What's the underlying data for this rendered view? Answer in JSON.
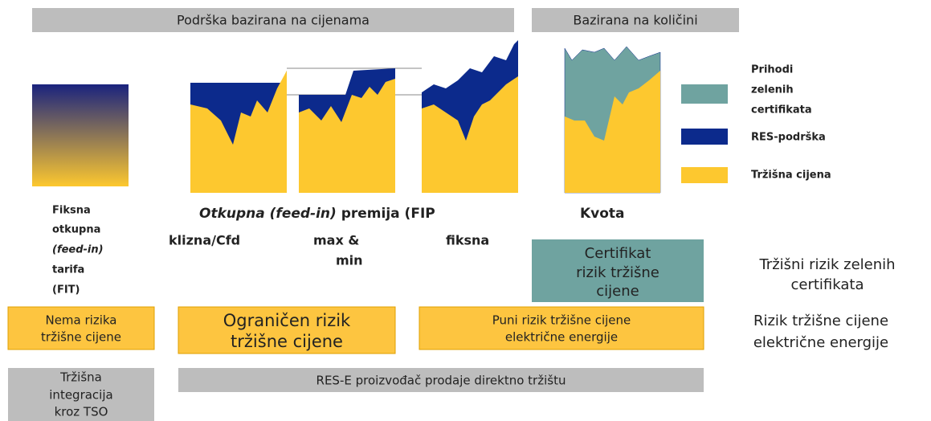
{
  "header": {
    "price_based": "Podrška bazirana na cijenama",
    "quantity_based": "Bazirana na količini"
  },
  "legend": {
    "green_certificates": [
      "Prihodi",
      "zelenih",
      "certifikata"
    ],
    "res_support": "RES-podrška",
    "market_price": "Tržišna cijena"
  },
  "schemes": {
    "fit": [
      "Fiksna",
      "otkupna",
      "(feed-in)",
      "tarifa",
      "(FIT)"
    ],
    "fip_heading": {
      "italic": "Otkupna (feed-in)",
      "rest": "premija (FIP"
    },
    "quota": "Kvota",
    "sliding": "klizna/Cfd",
    "maxmin": [
      "max &",
      "min"
    ],
    "fixed": "fiksna"
  },
  "certificate_box": [
    "Certifikat",
    "rizik tržišne",
    "cijene"
  ],
  "risks": {
    "none": [
      "Nema rizika",
      "tržišne cijene"
    ],
    "limited": [
      "Ograničen rizik",
      "tržišne cijene"
    ],
    "full": [
      "Puni rizik tržišne cijene",
      "električne energije"
    ]
  },
  "risk_labels": {
    "green": [
      "Tržišni rizik zelenih",
      "certifikata"
    ],
    "electricity": [
      "Rizik tržišne cijene",
      "električne energije"
    ]
  },
  "integration": {
    "tso": [
      "Tržišna",
      "integracija",
      "kroz TSO"
    ],
    "direct": "RES-E proizvođač prodaje direktno tržištu"
  }
}
